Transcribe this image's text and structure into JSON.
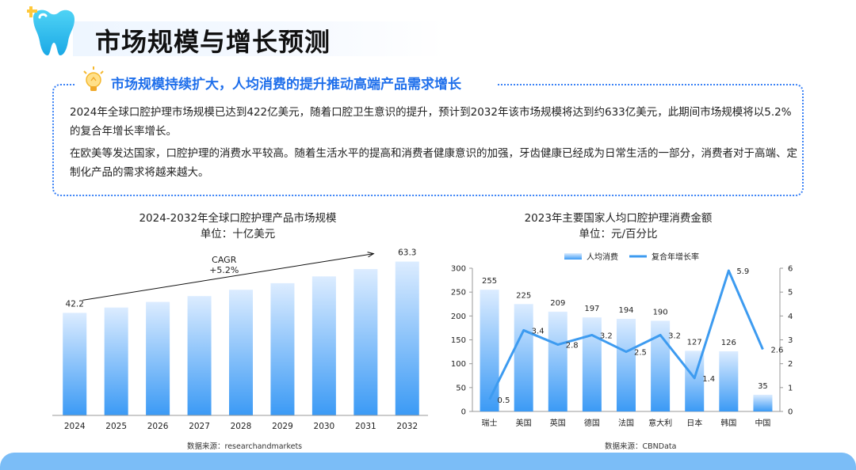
{
  "page": {
    "title": "市场规模与增长预测",
    "subtitle": "市场规模持续扩大，人均消费的提升推动高端产品需求增长",
    "paragraphs": [
      "2024年全球口腔护理市场规模已达到422亿美元，随着口腔卫生意识的提升，预计到2032年该市场规模将达到约633亿美元，此期间市场规模将以5.2%的复合年增长率增长。",
      "在欧美等发达国家，口腔护理的消费水平较高。随着生活水平的提高和消费者健康意识的加强，牙齿健康已经成为日常生活的一部分，消费者对于高端、定制化产品的需求将越来越大。"
    ],
    "colors": {
      "accent": "#1f6feb",
      "bar_top": "#dcecff",
      "bar_bottom": "#3b9af5",
      "line": "#3d9bf0"
    },
    "icons": [
      "tooth-icon",
      "lightbulb-icon"
    ]
  },
  "chart_data": [
    {
      "type": "bar",
      "title": "2024-2032年全球口腔护理产品市场规模",
      "unit": "单位：十亿美元",
      "categories": [
        "2024",
        "2025",
        "2026",
        "2027",
        "2028",
        "2029",
        "2030",
        "2031",
        "2032"
      ],
      "values": [
        42.2,
        44.4,
        46.7,
        49.1,
        51.7,
        54.4,
        57.2,
        60.2,
        63.3
      ],
      "data_labels": {
        "2024": "42.2",
        "2032": "63.3"
      },
      "annotation": {
        "line1": "CAGR",
        "line2": "+5.2%"
      },
      "ylim": [
        0,
        70
      ],
      "source": "数据来源：researchandmarkets"
    },
    {
      "type": "bar+line",
      "title": "2023年主要国家人均口腔护理消费金额",
      "unit": "单位：元/百分比",
      "categories": [
        "瑞士",
        "美国",
        "英国",
        "德国",
        "法国",
        "意大利",
        "日本",
        "韩国",
        "中国"
      ],
      "series": [
        {
          "name": "人均消费",
          "type": "bar",
          "axis": "left",
          "values": [
            255,
            225,
            209,
            197,
            194,
            190,
            127,
            126,
            35
          ]
        },
        {
          "name": "复合年增长率",
          "type": "line",
          "axis": "right",
          "values": [
            0.5,
            3.4,
            2.8,
            3.2,
            2.5,
            3.2,
            1.4,
            5.9,
            2.6
          ]
        }
      ],
      "y_left": {
        "min": 0,
        "max": 300,
        "ticks": [
          "0",
          "50",
          "100",
          "150",
          "200",
          "250",
          "300"
        ]
      },
      "y_right": {
        "min": 0,
        "max": 6,
        "ticks": [
          "0",
          "1",
          "2",
          "3",
          "4",
          "5",
          "6"
        ]
      },
      "legend": "top-center",
      "source": "数据来源：CBNData"
    }
  ]
}
